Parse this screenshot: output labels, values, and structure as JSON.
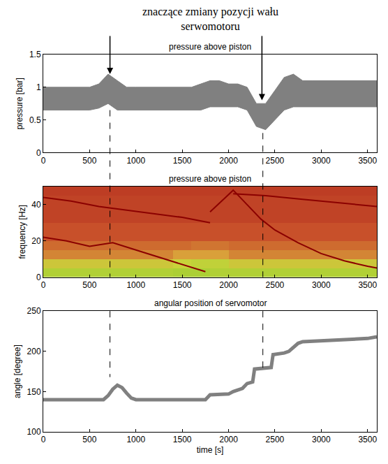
{
  "chart_data": [
    {
      "type": "line",
      "title": "pressure above piston",
      "ylabel": "pressure [bar]",
      "xlim": [
        0,
        3600
      ],
      "xticks": [
        0,
        500,
        1000,
        1500,
        2000,
        2500,
        3000,
        3500
      ],
      "ylim": [
        0,
        1.5
      ],
      "yticks": [
        0,
        0.5,
        1,
        1.5
      ],
      "grid": false,
      "x": [
        0,
        100,
        200,
        300,
        400,
        500,
        600,
        700,
        800,
        900,
        1000,
        1100,
        1200,
        1300,
        1400,
        1500,
        1600,
        1700,
        1800,
        1900,
        2000,
        2100,
        2200,
        2300,
        2400,
        2500,
        2600,
        2700,
        2800,
        2900,
        3000,
        3100,
        3200,
        3300,
        3400,
        3500,
        3600
      ],
      "series": [
        {
          "color": "#808080",
          "values": [
            0.65,
            0.65,
            0.65,
            0.65,
            0.65,
            0.65,
            0.68,
            0.75,
            0.65,
            0.65,
            0.65,
            0.65,
            0.65,
            0.65,
            0.65,
            0.65,
            0.65,
            0.65,
            0.7,
            0.7,
            0.7,
            0.7,
            0.65,
            0.4,
            0.35,
            0.5,
            0.65,
            0.7,
            0.7,
            0.7,
            0.7,
            0.7,
            0.7,
            0.7,
            0.7,
            0.7,
            0.7
          ]
        },
        {
          "color": "#808080",
          "values": [
            1.0,
            1.0,
            1.0,
            1.0,
            1.0,
            1.0,
            1.05,
            1.2,
            1.1,
            1.0,
            1.0,
            1.0,
            1.0,
            1.0,
            1.0,
            1.0,
            1.0,
            1.05,
            1.1,
            1.1,
            1.05,
            1.05,
            1.0,
            0.75,
            0.75,
            0.95,
            1.15,
            1.2,
            1.1,
            1.1,
            1.1,
            1.1,
            1.1,
            1.1,
            1.1,
            1.1,
            1.1
          ]
        }
      ],
      "annotation": {
        "text": "znaczące zmiany pozycji wału serwomotoru",
        "x": [
          720,
          2360
        ],
        "y": [
          1.2,
          0.8
        ]
      },
      "dashed_lines": [
        {
          "x": 720,
          "from": 0.65,
          "to": 168
        },
        {
          "x": 2370,
          "from": 0.3,
          "to": 176
        }
      ]
    },
    {
      "type": "heatmap",
      "title": "pressure above piston",
      "ylabel": "frequency [Hz]",
      "xlim": [
        0,
        3600
      ],
      "xticks": [
        0,
        500,
        1000,
        1500,
        2000,
        2500,
        3000,
        3500
      ],
      "ylim": [
        0,
        50
      ],
      "yticks": [
        0,
        20,
        40
      ],
      "grid": false,
      "time_bins": [
        0,
        200,
        400,
        600,
        800,
        1000,
        1200,
        1400,
        1600,
        1800,
        2000,
        2200,
        2400,
        2600,
        2800,
        3000,
        3200,
        3400,
        3600
      ],
      "freq_bins": [
        0,
        5,
        10,
        15,
        20,
        25,
        30,
        35,
        40,
        45,
        50
      ],
      "color_range": [
        0,
        1
      ],
      "cells": [
        [
          0.15,
          0.15,
          0.15,
          0.15,
          0.15,
          0.15,
          0.15,
          0.12,
          0.12,
          0.15,
          0.15,
          0.15,
          0.15,
          0.15,
          0.15,
          0.15,
          0.15,
          0.15
        ],
        [
          0.35,
          0.35,
          0.35,
          0.35,
          0.35,
          0.35,
          0.35,
          0.3,
          0.25,
          0.25,
          0.35,
          0.35,
          0.35,
          0.35,
          0.35,
          0.35,
          0.35,
          0.35
        ],
        [
          0.55,
          0.55,
          0.55,
          0.55,
          0.55,
          0.55,
          0.55,
          0.5,
          0.5,
          0.5,
          0.55,
          0.55,
          0.55,
          0.55,
          0.55,
          0.55,
          0.55,
          0.55
        ],
        [
          0.6,
          0.6,
          0.6,
          0.6,
          0.6,
          0.6,
          0.6,
          0.6,
          0.58,
          0.58,
          0.6,
          0.6,
          0.6,
          0.6,
          0.6,
          0.6,
          0.6,
          0.6
        ],
        [
          0.65,
          0.65,
          0.65,
          0.65,
          0.65,
          0.65,
          0.65,
          0.65,
          0.65,
          0.65,
          0.65,
          0.65,
          0.65,
          0.65,
          0.65,
          0.65,
          0.65,
          0.65
        ],
        [
          0.65,
          0.65,
          0.65,
          0.65,
          0.65,
          0.65,
          0.65,
          0.65,
          0.65,
          0.65,
          0.65,
          0.65,
          0.65,
          0.65,
          0.65,
          0.65,
          0.65,
          0.65
        ],
        [
          0.7,
          0.7,
          0.7,
          0.7,
          0.7,
          0.7,
          0.7,
          0.7,
          0.7,
          0.7,
          0.7,
          0.7,
          0.7,
          0.7,
          0.7,
          0.7,
          0.7,
          0.7
        ],
        [
          0.7,
          0.7,
          0.7,
          0.7,
          0.7,
          0.7,
          0.7,
          0.7,
          0.7,
          0.7,
          0.7,
          0.7,
          0.7,
          0.7,
          0.7,
          0.7,
          0.7,
          0.7
        ],
        [
          0.7,
          0.7,
          0.7,
          0.7,
          0.7,
          0.7,
          0.7,
          0.7,
          0.7,
          0.7,
          0.7,
          0.7,
          0.7,
          0.7,
          0.7,
          0.7,
          0.7,
          0.7
        ],
        [
          0.72,
          0.72,
          0.72,
          0.72,
          0.72,
          0.72,
          0.72,
          0.72,
          0.72,
          0.72,
          0.72,
          0.72,
          0.72,
          0.72,
          0.72,
          0.72,
          0.72,
          0.72
        ]
      ],
      "series": [
        {
          "type": "line",
          "color": "#8b0000",
          "x": [
            0,
            250,
            500,
            750,
            1000,
            1250,
            1500,
            1750
          ],
          "values": [
            22,
            20,
            17,
            19,
            15,
            11,
            7,
            3
          ]
        },
        {
          "type": "line",
          "color": "#8b0000",
          "x": [
            0,
            300,
            600,
            900,
            1200,
            1500,
            1800
          ],
          "values": [
            44,
            42,
            39,
            37,
            35,
            33,
            30
          ]
        },
        {
          "type": "line",
          "color": "#8b0000",
          "x": [
            1800,
            1950,
            2050,
            2200,
            2350,
            2500,
            2750,
            3000,
            3250,
            3500,
            3600
          ],
          "values": [
            36,
            43,
            48,
            40,
            32,
            26,
            19,
            13,
            9,
            6,
            5
          ]
        },
        {
          "type": "line",
          "color": "#8b0000",
          "x": [
            2050,
            2400,
            2800,
            3200,
            3600
          ],
          "values": [
            46,
            45,
            43,
            41,
            39
          ]
        }
      ]
    },
    {
      "type": "line",
      "title": "angular position of servomotor",
      "xlabel": "time [s]",
      "ylabel": "angle [degree]",
      "xlim": [
        0,
        3600
      ],
      "xticks": [
        0,
        500,
        1000,
        1500,
        2000,
        2500,
        3000,
        3500
      ],
      "ylim": [
        100,
        250
      ],
      "yticks": [
        100,
        150,
        200,
        250
      ],
      "grid": false,
      "color": "#808080",
      "x": [
        0,
        650,
        700,
        750,
        800,
        850,
        900,
        950,
        1000,
        1750,
        1800,
        2000,
        2050,
        2100,
        2150,
        2200,
        2260,
        2280,
        2460,
        2480,
        2600,
        2650,
        2700,
        2750,
        2800,
        3000,
        3300,
        3500,
        3600
      ],
      "values": [
        140,
        140,
        145,
        153,
        158,
        155,
        148,
        142,
        140,
        140,
        146,
        147,
        150,
        152,
        154,
        160,
        162,
        178,
        180,
        196,
        198,
        200,
        205,
        210,
        212,
        213,
        214,
        216,
        218
      ]
    }
  ]
}
